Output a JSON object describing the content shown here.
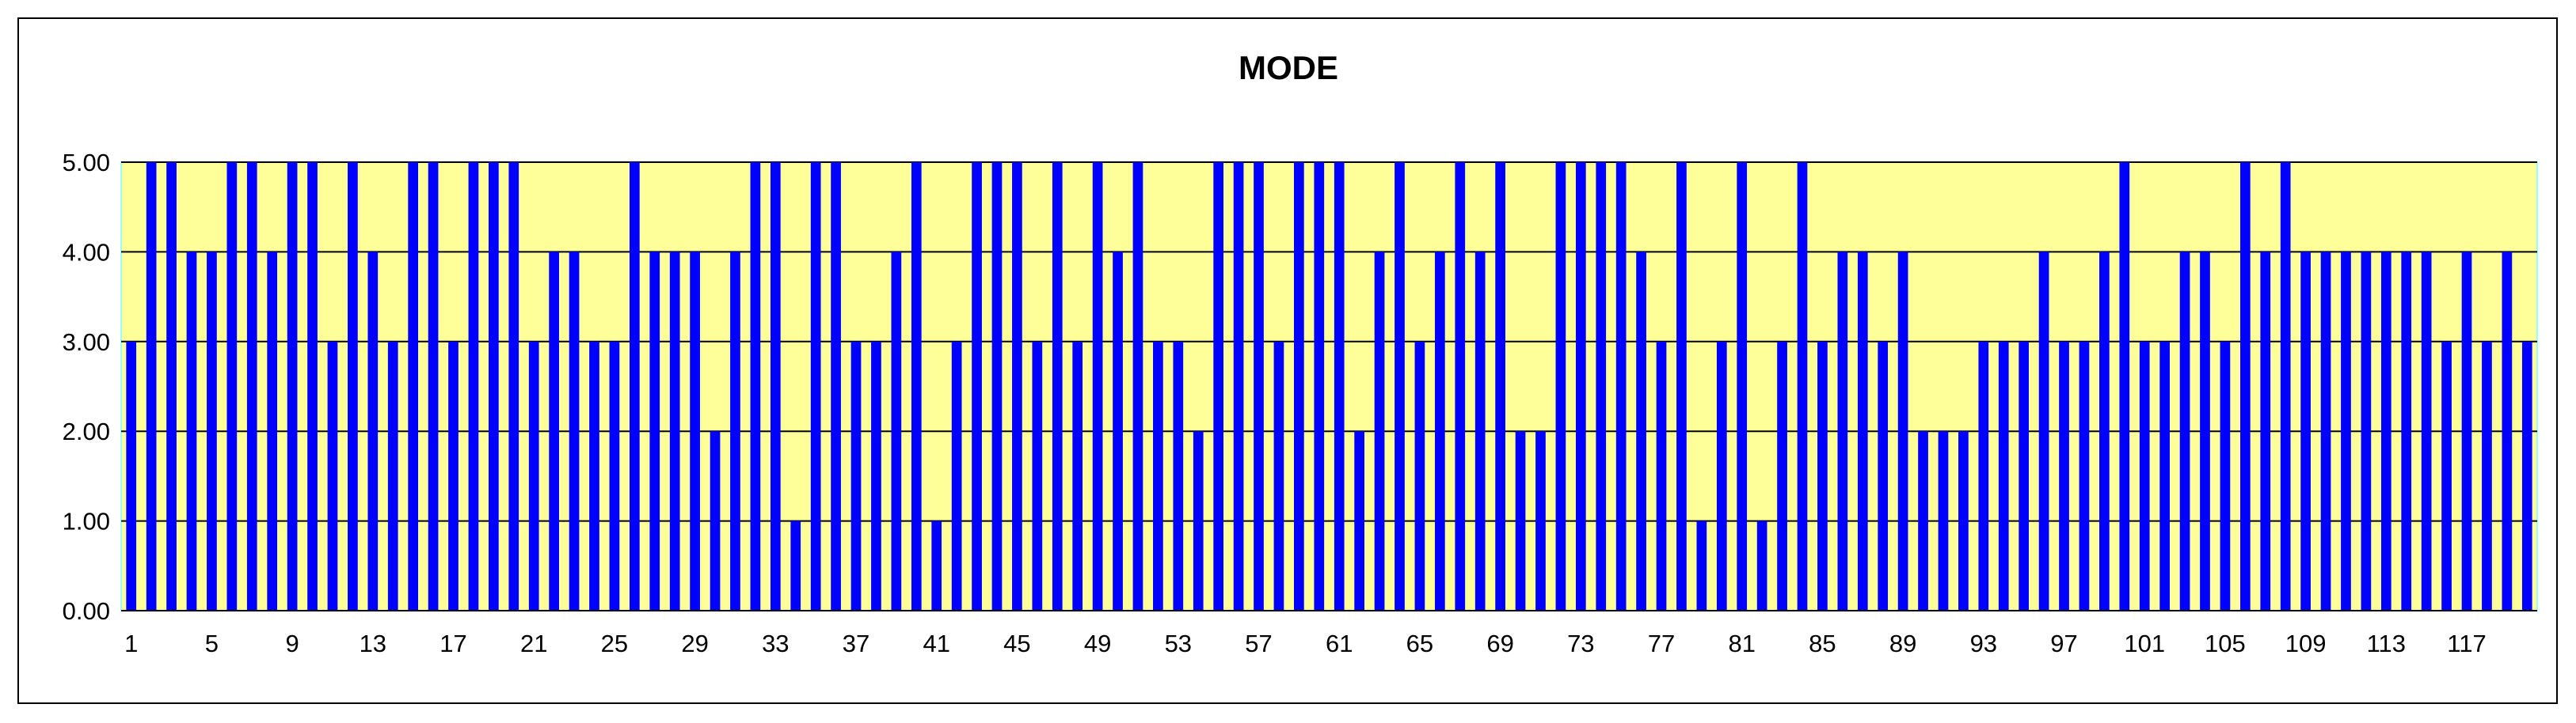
{
  "chart_data": {
    "type": "bar",
    "title": "MODE",
    "xlabel": "",
    "ylabel": "",
    "ylim": [
      0,
      5
    ],
    "y_ticks": [
      "0.00",
      "1.00",
      "2.00",
      "3.00",
      "4.00",
      "5.00"
    ],
    "x_tick_labels": [
      "1",
      "5",
      "9",
      "13",
      "17",
      "21",
      "25",
      "29",
      "33",
      "37",
      "41",
      "45",
      "49",
      "53",
      "57",
      "61",
      "65",
      "69",
      "73",
      "77",
      "81",
      "85",
      "89",
      "93",
      "97",
      "101",
      "105",
      "109",
      "113",
      "117"
    ],
    "x_tick_step": 4,
    "grid": true,
    "legend": "none",
    "categories": [
      1,
      2,
      3,
      4,
      5,
      6,
      7,
      8,
      9,
      10,
      11,
      12,
      13,
      14,
      15,
      16,
      17,
      18,
      19,
      20,
      21,
      22,
      23,
      24,
      25,
      26,
      27,
      28,
      29,
      30,
      31,
      32,
      33,
      34,
      35,
      36,
      37,
      38,
      39,
      40,
      41,
      42,
      43,
      44,
      45,
      46,
      47,
      48,
      49,
      50,
      51,
      52,
      53,
      54,
      55,
      56,
      57,
      58,
      59,
      60,
      61,
      62,
      63,
      64,
      65,
      66,
      67,
      68,
      69,
      70,
      71,
      72,
      73,
      74,
      75,
      76,
      77,
      78,
      79,
      80,
      81,
      82,
      83,
      84,
      85,
      86,
      87,
      88,
      89,
      90,
      91,
      92,
      93,
      94,
      95,
      96,
      97,
      98,
      99,
      100,
      101,
      102,
      103,
      104,
      105,
      106,
      107,
      108,
      109,
      110,
      111,
      112,
      113,
      114,
      115,
      116,
      117,
      118,
      119,
      120
    ],
    "values": [
      3,
      5,
      5,
      4,
      4,
      5,
      5,
      4,
      5,
      5,
      3,
      5,
      4,
      3,
      5,
      5,
      3,
      5,
      5,
      5,
      3,
      4,
      4,
      3,
      3,
      5,
      4,
      4,
      4,
      2,
      4,
      5,
      5,
      1,
      5,
      5,
      3,
      3,
      4,
      5,
      1,
      3,
      5,
      5,
      5,
      3,
      5,
      3,
      5,
      4,
      5,
      3,
      3,
      2,
      5,
      5,
      5,
      3,
      5,
      5,
      5,
      2,
      4,
      5,
      3,
      4,
      5,
      4,
      5,
      2,
      2,
      5,
      5,
      5,
      5,
      4,
      3,
      5,
      1,
      3,
      5,
      1,
      3,
      5,
      3,
      4,
      4,
      3,
      4,
      2,
      2,
      2,
      3,
      3,
      3,
      4,
      3,
      3,
      4,
      5,
      3,
      3,
      4,
      4,
      3,
      5,
      4,
      5,
      4,
      4,
      4,
      4,
      4,
      4,
      4,
      3,
      4,
      3,
      4,
      3
    ],
    "colors": {
      "bar": "#0000FF",
      "plot_background": "#FFFF99",
      "gridline": "#000000",
      "plot_border": "#99FFFF"
    }
  }
}
